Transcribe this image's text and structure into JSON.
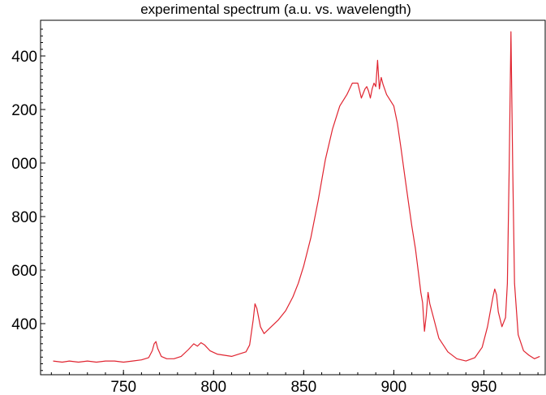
{
  "chart_data": {
    "type": "line",
    "title": "experimental spectrum (a.u. vs. wavelength)",
    "xlabel": "",
    "ylabel": "",
    "xlim": [
      704,
      984
    ],
    "ylim": [
      220,
      530
    ],
    "x_ticks": [
      750,
      800,
      850,
      900,
      950
    ],
    "x_tick_labels": [
      "750",
      "800",
      "850",
      "900",
      "950"
    ],
    "y_ticks": [
      320,
      400,
      480,
      560,
      640,
      720,
      800
    ],
    "y_tick_labels": [
      "400",
      "600",
      "800",
      "000",
      "200",
      "400"
    ],
    "y_tick_values": [
      400,
      460,
      520,
      580,
      640,
      700
    ],
    "grid": false,
    "colors": {
      "line": "#e02430",
      "axis": "#000000"
    },
    "series": [
      {
        "x": [
          711,
          716,
          720,
          725,
          730,
          735,
          740,
          745,
          750,
          755,
          760,
          764,
          766,
          767,
          768,
          769,
          771,
          774,
          778,
          782,
          786,
          789,
          791,
          793,
          795,
          798,
          802,
          806,
          810,
          814,
          818,
          820,
          822,
          823,
          824,
          826,
          828,
          832,
          836,
          840,
          844,
          847,
          850,
          854,
          858,
          862,
          866,
          870,
          874,
          877,
          880,
          882,
          884,
          885,
          886,
          887,
          888,
          889,
          890,
          891,
          892,
          893,
          894,
          896,
          898,
          900,
          902,
          904,
          906,
          908,
          910,
          912,
          914,
          915,
          916,
          917,
          918,
          919,
          920,
          922,
          925,
          930,
          935,
          940,
          945,
          949,
          952,
          955,
          956,
          957,
          958,
          960,
          962,
          963,
          964,
          965,
          966,
          967,
          969,
          972,
          975,
          978,
          981
        ],
        "y": [
          232,
          231,
          232,
          231,
          232,
          231,
          232,
          232,
          231,
          232,
          233,
          235,
          241,
          247,
          249,
          243,
          236,
          234,
          234,
          236,
          242,
          247,
          245,
          248,
          246,
          241,
          238,
          237,
          236,
          238,
          240,
          246,
          268,
          282,
          278,
          262,
          256,
          262,
          268,
          276,
          288,
          300,
          315,
          340,
          372,
          408,
          435,
          455,
          465,
          475,
          475,
          462,
          470,
          472,
          468,
          462,
          470,
          475,
          472,
          495,
          470,
          480,
          474,
          465,
          460,
          455,
          440,
          418,
          395,
          372,
          350,
          330,
          305,
          292,
          283,
          258,
          272,
          292,
          282,
          270,
          252,
          240,
          234,
          232,
          235,
          244,
          262,
          288,
          295,
          290,
          275,
          262,
          270,
          300,
          400,
          520,
          400,
          300,
          255,
          241,
          237,
          234,
          236
        ]
      }
    ]
  }
}
